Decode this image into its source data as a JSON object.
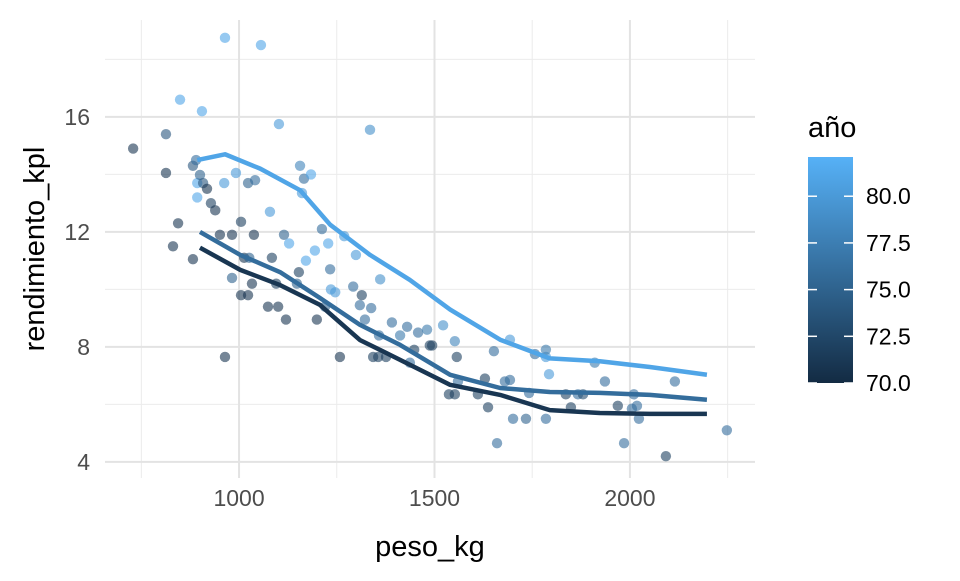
{
  "chart_data": {
    "type": "scatter",
    "title": "",
    "xlabel": "peso_kg",
    "ylabel": "rendimiento_kpl",
    "xlim": [
      657,
      2320
    ],
    "ylim": [
      3.44,
      19.37
    ],
    "x_ticks": [
      1000,
      1500,
      2000
    ],
    "x_tick_labels": [
      "1000",
      "1500",
      "2000"
    ],
    "x_minor": [
      750,
      1250,
      1750,
      2250
    ],
    "y_ticks": [
      4,
      8,
      12,
      16
    ],
    "y_tick_labels": [
      "4",
      "8",
      "12",
      "16"
    ],
    "y_minor": [
      6,
      10,
      14,
      18
    ],
    "grid": true,
    "legend": {
      "title": "año",
      "placement": "right",
      "type": "colorbar",
      "range": [
        70,
        82.1
      ],
      "ticks": [
        80.0,
        77.5,
        75.0,
        72.5,
        70.0
      ],
      "tick_labels": [
        "80.0",
        "77.5",
        "75.0",
        "72.5",
        "70.0"
      ],
      "low_color": "#132B43",
      "high_color": "#56B1F7"
    },
    "points": [
      [
        729,
        14.9,
        71
      ],
      [
        813,
        15.4,
        74
      ],
      [
        813,
        14.05,
        71
      ],
      [
        831,
        11.5,
        71
      ],
      [
        844,
        12.3,
        71
      ],
      [
        849,
        16.6,
        81
      ],
      [
        882,
        14.3,
        74
      ],
      [
        890,
        14.5,
        76
      ],
      [
        882,
        11.05,
        71
      ],
      [
        893,
        13.7,
        81
      ],
      [
        893,
        13.2,
        81
      ],
      [
        900,
        13.98,
        75
      ],
      [
        905,
        16.2,
        81
      ],
      [
        908,
        13.7,
        74
      ],
      [
        918,
        13.5,
        71
      ],
      [
        928,
        13.0,
        72
      ],
      [
        939,
        12.75,
        71
      ],
      [
        951,
        11.9,
        71
      ],
      [
        964,
        18.75,
        81
      ],
      [
        964,
        7.65,
        71
      ],
      [
        962,
        13.7,
        80
      ],
      [
        982,
        10.4,
        75
      ],
      [
        982,
        11.9,
        71
      ],
      [
        992,
        14.05,
        80
      ],
      [
        1005,
        12.35,
        72
      ],
      [
        1005,
        9.8,
        71
      ],
      [
        1013,
        11.1,
        71
      ],
      [
        1023,
        9.8,
        71
      ],
      [
        1023,
        13.7,
        75
      ],
      [
        1026,
        11.1,
        75
      ],
      [
        1033,
        10.2,
        71
      ],
      [
        1038,
        11.9,
        71
      ],
      [
        1041,
        13.8,
        76
      ],
      [
        1056,
        18.5,
        81
      ],
      [
        1074,
        9.4,
        71
      ],
      [
        1079,
        12.7,
        80
      ],
      [
        1084,
        11.1,
        72
      ],
      [
        1095,
        10.2,
        72
      ],
      [
        1102,
        15.75,
        80
      ],
      [
        1100,
        9.4,
        71
      ],
      [
        1115,
        11.9,
        75
      ],
      [
        1120,
        8.95,
        71
      ],
      [
        1128,
        11.6,
        81
      ],
      [
        1148,
        10.2,
        75
      ],
      [
        1153,
        10.6,
        72
      ],
      [
        1156,
        14.3,
        78
      ],
      [
        1161,
        13.35,
        80
      ],
      [
        1166,
        13.85,
        76
      ],
      [
        1171,
        11.0,
        81
      ],
      [
        1184,
        14.0,
        81
      ],
      [
        1194,
        11.35,
        81
      ],
      [
        1199,
        8.95,
        71
      ],
      [
        1212,
        12.1,
        76
      ],
      [
        1220,
        9.4,
        75
      ],
      [
        1228,
        11.6,
        81
      ],
      [
        1233,
        10.7,
        76
      ],
      [
        1235,
        10.0,
        80
      ],
      [
        1246,
        9.9,
        80
      ],
      [
        1258,
        7.65,
        71
      ],
      [
        1269,
        11.85,
        80
      ],
      [
        1292,
        10.1,
        76
      ],
      [
        1299,
        11.2,
        80
      ],
      [
        1309,
        9.45,
        76
      ],
      [
        1314,
        9.8,
        72
      ],
      [
        1322,
        8.95,
        76
      ],
      [
        1335,
        15.55,
        79
      ],
      [
        1338,
        9.35,
        76
      ],
      [
        1343,
        7.65,
        72
      ],
      [
        1356,
        7.65,
        72
      ],
      [
        1358,
        8.4,
        76
      ],
      [
        1361,
        10.35,
        79
      ],
      [
        1376,
        7.65,
        72
      ],
      [
        1391,
        8.85,
        76
      ],
      [
        1412,
        8.4,
        77
      ],
      [
        1430,
        8.7,
        76
      ],
      [
        1437,
        7.45,
        76
      ],
      [
        1448,
        7.9,
        72
      ],
      [
        1458,
        8.5,
        76
      ],
      [
        1481,
        8.6,
        77
      ],
      [
        1488,
        8.05,
        72
      ],
      [
        1494,
        8.05,
        72
      ],
      [
        1522,
        8.75,
        79
      ],
      [
        1537,
        6.35,
        72
      ],
      [
        1552,
        8.2,
        78
      ],
      [
        1552,
        6.35,
        72
      ],
      [
        1557,
        7.65,
        72
      ],
      [
        1560,
        6.8,
        76
      ],
      [
        1611,
        6.35,
        72
      ],
      [
        1629,
        6.9,
        72
      ],
      [
        1637,
        5.9,
        72
      ],
      [
        1652,
        7.85,
        76
      ],
      [
        1660,
        4.65,
        76
      ],
      [
        1680,
        6.8,
        76
      ],
      [
        1693,
        6.85,
        76
      ],
      [
        1693,
        8.25,
        80
      ],
      [
        1701,
        5.5,
        76
      ],
      [
        1734,
        5.5,
        75
      ],
      [
        1742,
        6.4,
        76
      ],
      [
        1757,
        7.75,
        76
      ],
      [
        1785,
        7.65,
        80
      ],
      [
        1785,
        7.9,
        77
      ],
      [
        1785,
        5.5,
        76
      ],
      [
        1793,
        7.05,
        80
      ],
      [
        1836,
        6.35,
        72
      ],
      [
        1849,
        5.9,
        72
      ],
      [
        1867,
        6.35,
        76
      ],
      [
        1880,
        6.35,
        73
      ],
      [
        1910,
        7.45,
        77
      ],
      [
        1936,
        6.8,
        76
      ],
      [
        1969,
        5.95,
        72
      ],
      [
        1985,
        4.65,
        76
      ],
      [
        2005,
        5.85,
        76
      ],
      [
        2010,
        6.35,
        76
      ],
      [
        2018,
        5.95,
        76
      ],
      [
        2023,
        5.5,
        76
      ],
      [
        2092,
        4.2,
        72
      ],
      [
        2115,
        6.8,
        76
      ],
      [
        2248,
        5.1,
        76
      ]
    ],
    "smooth_lines": [
      {
        "name": "año 81",
        "year": 81,
        "x": [
          893,
          964,
          1054,
          1156,
          1233,
          1335,
          1437,
          1540,
          1668,
          1795,
          1923,
          2051,
          2197
        ],
        "y": [
          14.5,
          14.7,
          14.2,
          13.45,
          12.25,
          11.2,
          10.33,
          9.3,
          8.25,
          7.6,
          7.5,
          7.3,
          7.03
        ]
      },
      {
        "name": "año 76",
        "year": 76,
        "x": [
          900,
          1003,
          1105,
          1207,
          1309,
          1412,
          1540,
          1668,
          1795,
          1923,
          2051,
          2197
        ],
        "y": [
          12.0,
          11.2,
          10.6,
          9.7,
          8.77,
          8.07,
          7.03,
          6.57,
          6.43,
          6.4,
          6.33,
          6.16
        ]
      },
      {
        "name": "año 71",
        "year": 71,
        "x": [
          900,
          1003,
          1105,
          1207,
          1309,
          1412,
          1540,
          1668,
          1795,
          1923,
          2051,
          2197
        ],
        "y": [
          11.45,
          10.68,
          10.15,
          9.46,
          8.24,
          7.55,
          6.68,
          6.33,
          5.8,
          5.7,
          5.67,
          5.67
        ]
      }
    ]
  }
}
